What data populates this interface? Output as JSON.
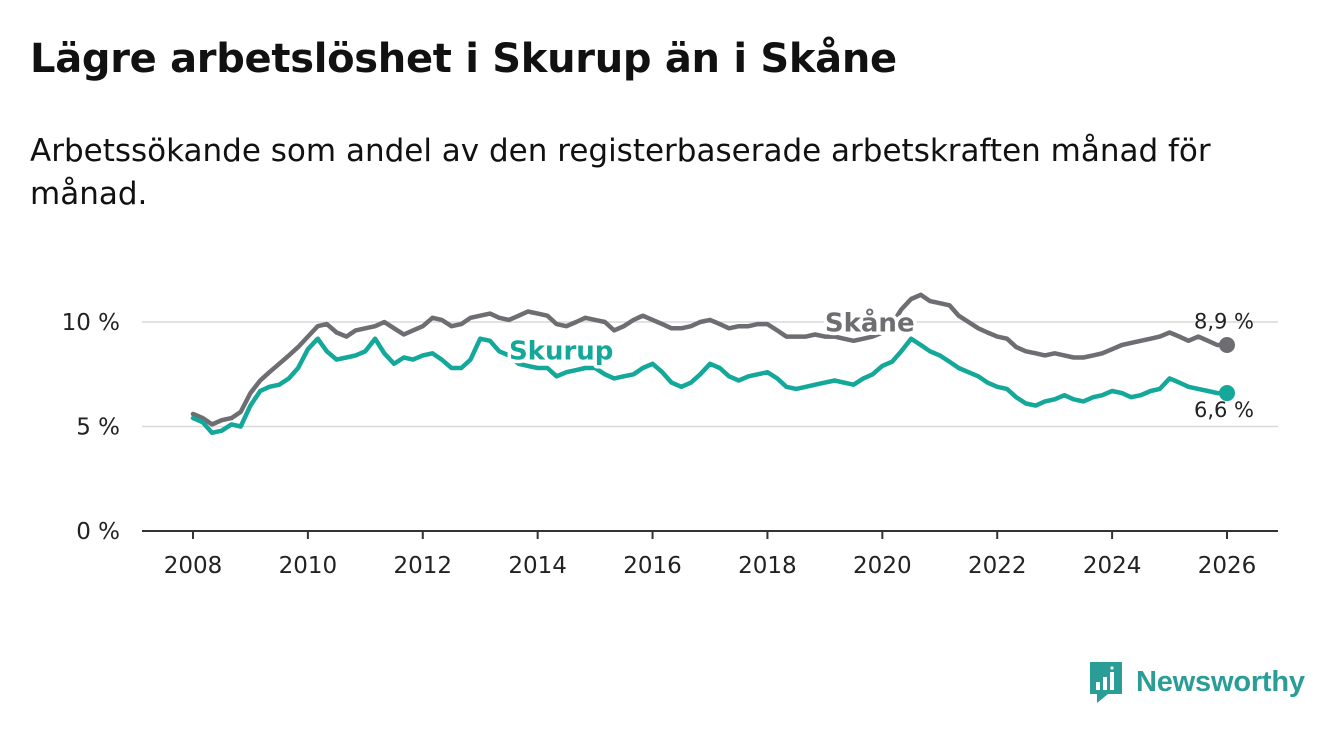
{
  "header": {
    "title": "Lägre arbetslöshet i Skurup än i Skåne",
    "subtitle": "Arbetssökande som andel av den registerbaserade arbetskraften månad för månad."
  },
  "brand": {
    "name": "Newsworthy",
    "icon": "newsworthy-logo-icon",
    "color": "#2a9d97"
  },
  "chart_data": {
    "type": "line",
    "title": "Lägre arbetslöshet i Skurup än i Skåne",
    "subtitle": "Arbetssökande som andel av den registerbaserade arbetskraften månad för månad.",
    "xlabel": "",
    "ylabel": "",
    "x_ticks": [
      2008,
      2010,
      2012,
      2014,
      2016,
      2018,
      2020,
      2022,
      2024,
      2026
    ],
    "x_tick_labels": [
      "2008",
      "2010",
      "2012",
      "2014",
      "2016",
      "2018",
      "2020",
      "2022",
      "2024",
      "2026"
    ],
    "y_ticks": [
      0,
      5,
      10
    ],
    "y_tick_labels": [
      "0 %",
      "5 %",
      "10 %"
    ],
    "xlim": [
      2007.2,
      2026.9
    ],
    "ylim": [
      0,
      10.5
    ],
    "grid": true,
    "series": [
      {
        "name": "Skåne",
        "label": "Skåne",
        "color": "#6e6d72",
        "end_label": "8,9 %",
        "points": [
          [
            2008.0,
            5.6
          ],
          [
            2008.17,
            5.4
          ],
          [
            2008.33,
            5.1
          ],
          [
            2008.5,
            5.3
          ],
          [
            2008.67,
            5.4
          ],
          [
            2008.83,
            5.7
          ],
          [
            2009.0,
            6.6
          ],
          [
            2009.17,
            7.2
          ],
          [
            2009.33,
            7.6
          ],
          [
            2009.5,
            8.0
          ],
          [
            2009.67,
            8.4
          ],
          [
            2009.83,
            8.8
          ],
          [
            2010.0,
            9.3
          ],
          [
            2010.17,
            9.8
          ],
          [
            2010.33,
            9.9
          ],
          [
            2010.5,
            9.5
          ],
          [
            2010.67,
            9.3
          ],
          [
            2010.83,
            9.6
          ],
          [
            2011.0,
            9.7
          ],
          [
            2011.17,
            9.8
          ],
          [
            2011.33,
            10.0
          ],
          [
            2011.5,
            9.7
          ],
          [
            2011.67,
            9.4
          ],
          [
            2011.83,
            9.6
          ],
          [
            2012.0,
            9.8
          ],
          [
            2012.17,
            10.2
          ],
          [
            2012.33,
            10.1
          ],
          [
            2012.5,
            9.8
          ],
          [
            2012.67,
            9.9
          ],
          [
            2012.83,
            10.2
          ],
          [
            2013.0,
            10.3
          ],
          [
            2013.17,
            10.4
          ],
          [
            2013.33,
            10.2
          ],
          [
            2013.5,
            10.1
          ],
          [
            2013.67,
            10.3
          ],
          [
            2013.83,
            10.5
          ],
          [
            2014.0,
            10.4
          ],
          [
            2014.17,
            10.3
          ],
          [
            2014.33,
            9.9
          ],
          [
            2014.5,
            9.8
          ],
          [
            2014.67,
            10.0
          ],
          [
            2014.83,
            10.2
          ],
          [
            2015.0,
            10.1
          ],
          [
            2015.17,
            10.0
          ],
          [
            2015.33,
            9.6
          ],
          [
            2015.5,
            9.8
          ],
          [
            2015.67,
            10.1
          ],
          [
            2015.83,
            10.3
          ],
          [
            2016.0,
            10.1
          ],
          [
            2016.17,
            9.9
          ],
          [
            2016.33,
            9.7
          ],
          [
            2016.5,
            9.7
          ],
          [
            2016.67,
            9.8
          ],
          [
            2016.83,
            10.0
          ],
          [
            2017.0,
            10.1
          ],
          [
            2017.17,
            9.9
          ],
          [
            2017.33,
            9.7
          ],
          [
            2017.5,
            9.8
          ],
          [
            2017.67,
            9.8
          ],
          [
            2017.83,
            9.9
          ],
          [
            2018.0,
            9.9
          ],
          [
            2018.17,
            9.6
          ],
          [
            2018.33,
            9.3
          ],
          [
            2018.5,
            9.3
          ],
          [
            2018.67,
            9.3
          ],
          [
            2018.83,
            9.4
          ],
          [
            2019.0,
            9.3
          ],
          [
            2019.17,
            9.3
          ],
          [
            2019.33,
            9.2
          ],
          [
            2019.5,
            9.1
          ],
          [
            2019.67,
            9.2
          ],
          [
            2019.83,
            9.3
          ],
          [
            2020.0,
            9.5
          ],
          [
            2020.17,
            9.9
          ],
          [
            2020.33,
            10.6
          ],
          [
            2020.5,
            11.1
          ],
          [
            2020.67,
            11.3
          ],
          [
            2020.83,
            11.0
          ],
          [
            2021.0,
            10.9
          ],
          [
            2021.17,
            10.8
          ],
          [
            2021.33,
            10.3
          ],
          [
            2021.5,
            10.0
          ],
          [
            2021.67,
            9.7
          ],
          [
            2021.83,
            9.5
          ],
          [
            2022.0,
            9.3
          ],
          [
            2022.17,
            9.2
          ],
          [
            2022.33,
            8.8
          ],
          [
            2022.5,
            8.6
          ],
          [
            2022.67,
            8.5
          ],
          [
            2022.83,
            8.4
          ],
          [
            2023.0,
            8.5
          ],
          [
            2023.17,
            8.4
          ],
          [
            2023.33,
            8.3
          ],
          [
            2023.5,
            8.3
          ],
          [
            2023.67,
            8.4
          ],
          [
            2023.83,
            8.5
          ],
          [
            2024.0,
            8.7
          ],
          [
            2024.17,
            8.9
          ],
          [
            2024.33,
            9.0
          ],
          [
            2024.5,
            9.1
          ],
          [
            2024.67,
            9.2
          ],
          [
            2024.83,
            9.3
          ],
          [
            2025.0,
            9.5
          ],
          [
            2025.17,
            9.3
          ],
          [
            2025.33,
            9.1
          ],
          [
            2025.5,
            9.3
          ],
          [
            2025.67,
            9.1
          ],
          [
            2025.83,
            8.9
          ],
          [
            2026.0,
            8.9
          ]
        ]
      },
      {
        "name": "Skurup",
        "label": "Skurup",
        "color": "#14a89a",
        "end_label": "6,6 %",
        "points": [
          [
            2008.0,
            5.4
          ],
          [
            2008.17,
            5.2
          ],
          [
            2008.33,
            4.7
          ],
          [
            2008.5,
            4.8
          ],
          [
            2008.67,
            5.1
          ],
          [
            2008.83,
            5.0
          ],
          [
            2009.0,
            6.0
          ],
          [
            2009.17,
            6.7
          ],
          [
            2009.33,
            6.9
          ],
          [
            2009.5,
            7.0
          ],
          [
            2009.67,
            7.3
          ],
          [
            2009.83,
            7.8
          ],
          [
            2010.0,
            8.7
          ],
          [
            2010.17,
            9.2
          ],
          [
            2010.33,
            8.6
          ],
          [
            2010.5,
            8.2
          ],
          [
            2010.67,
            8.3
          ],
          [
            2010.83,
            8.4
          ],
          [
            2011.0,
            8.6
          ],
          [
            2011.17,
            9.2
          ],
          [
            2011.33,
            8.5
          ],
          [
            2011.5,
            8.0
          ],
          [
            2011.67,
            8.3
          ],
          [
            2011.83,
            8.2
          ],
          [
            2012.0,
            8.4
          ],
          [
            2012.17,
            8.5
          ],
          [
            2012.33,
            8.2
          ],
          [
            2012.5,
            7.8
          ],
          [
            2012.67,
            7.8
          ],
          [
            2012.83,
            8.2
          ],
          [
            2013.0,
            9.2
          ],
          [
            2013.17,
            9.1
          ],
          [
            2013.33,
            8.6
          ],
          [
            2013.5,
            8.4
          ],
          [
            2013.67,
            8.0
          ],
          [
            2013.83,
            7.9
          ],
          [
            2014.0,
            7.8
          ],
          [
            2014.17,
            7.8
          ],
          [
            2014.33,
            7.4
          ],
          [
            2014.5,
            7.6
          ],
          [
            2014.67,
            7.7
          ],
          [
            2014.83,
            7.8
          ],
          [
            2015.0,
            7.8
          ],
          [
            2015.17,
            7.5
          ],
          [
            2015.33,
            7.3
          ],
          [
            2015.5,
            7.4
          ],
          [
            2015.67,
            7.5
          ],
          [
            2015.83,
            7.8
          ],
          [
            2016.0,
            8.0
          ],
          [
            2016.17,
            7.6
          ],
          [
            2016.33,
            7.1
          ],
          [
            2016.5,
            6.9
          ],
          [
            2016.67,
            7.1
          ],
          [
            2016.83,
            7.5
          ],
          [
            2017.0,
            8.0
          ],
          [
            2017.17,
            7.8
          ],
          [
            2017.33,
            7.4
          ],
          [
            2017.5,
            7.2
          ],
          [
            2017.67,
            7.4
          ],
          [
            2017.83,
            7.5
          ],
          [
            2018.0,
            7.6
          ],
          [
            2018.17,
            7.3
          ],
          [
            2018.33,
            6.9
          ],
          [
            2018.5,
            6.8
          ],
          [
            2018.67,
            6.9
          ],
          [
            2018.83,
            7.0
          ],
          [
            2019.0,
            7.1
          ],
          [
            2019.17,
            7.2
          ],
          [
            2019.33,
            7.1
          ],
          [
            2019.5,
            7.0
          ],
          [
            2019.67,
            7.3
          ],
          [
            2019.83,
            7.5
          ],
          [
            2020.0,
            7.9
          ],
          [
            2020.17,
            8.1
          ],
          [
            2020.33,
            8.6
          ],
          [
            2020.5,
            9.2
          ],
          [
            2020.67,
            8.9
          ],
          [
            2020.83,
            8.6
          ],
          [
            2021.0,
            8.4
          ],
          [
            2021.17,
            8.1
          ],
          [
            2021.33,
            7.8
          ],
          [
            2021.5,
            7.6
          ],
          [
            2021.67,
            7.4
          ],
          [
            2021.83,
            7.1
          ],
          [
            2022.0,
            6.9
          ],
          [
            2022.17,
            6.8
          ],
          [
            2022.33,
            6.4
          ],
          [
            2022.5,
            6.1
          ],
          [
            2022.67,
            6.0
          ],
          [
            2022.83,
            6.2
          ],
          [
            2023.0,
            6.3
          ],
          [
            2023.17,
            6.5
          ],
          [
            2023.33,
            6.3
          ],
          [
            2023.5,
            6.2
          ],
          [
            2023.67,
            6.4
          ],
          [
            2023.83,
            6.5
          ],
          [
            2024.0,
            6.7
          ],
          [
            2024.17,
            6.6
          ],
          [
            2024.33,
            6.4
          ],
          [
            2024.5,
            6.5
          ],
          [
            2024.67,
            6.7
          ],
          [
            2024.83,
            6.8
          ],
          [
            2025.0,
            7.3
          ],
          [
            2025.17,
            7.1
          ],
          [
            2025.33,
            6.9
          ],
          [
            2025.5,
            6.8
          ],
          [
            2025.67,
            6.7
          ],
          [
            2025.83,
            6.6
          ],
          [
            2026.0,
            6.6
          ]
        ]
      }
    ]
  }
}
